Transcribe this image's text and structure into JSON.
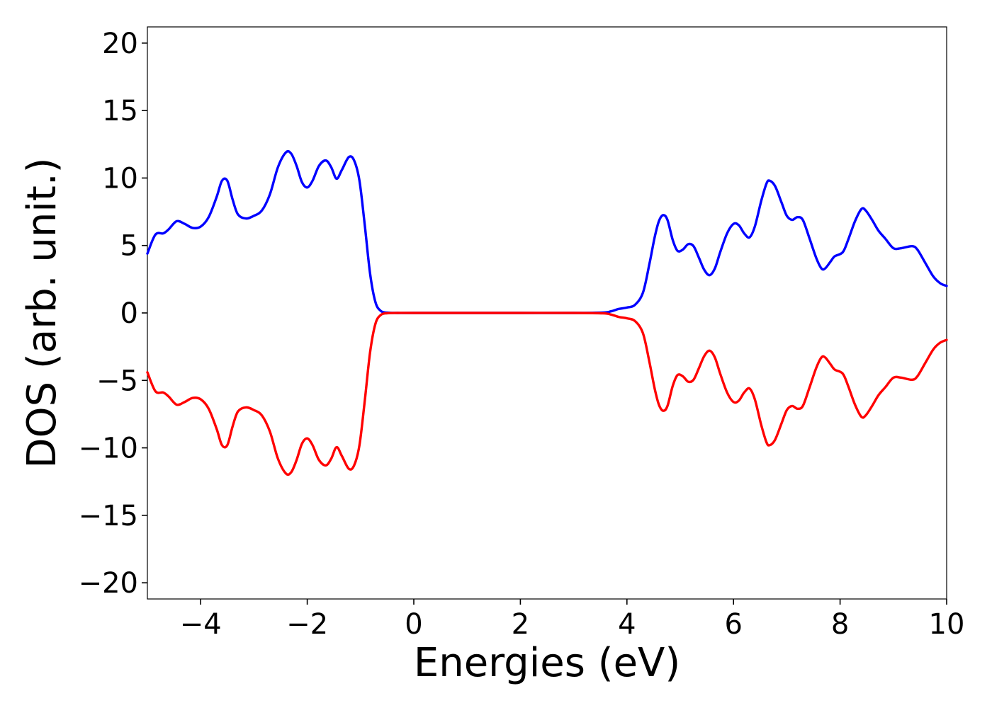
{
  "chart_data": {
    "type": "line",
    "xlabel": "Energies (eV)",
    "ylabel": "DOS (arb. unit.)",
    "xlim": [
      -5,
      10
    ],
    "ylim": [
      -21.2,
      21.2
    ],
    "xticks": [
      -4,
      -2,
      0,
      2,
      4,
      6,
      8,
      10
    ],
    "yticks": [
      20,
      15,
      10,
      5,
      0,
      -5,
      -10,
      -15,
      -20
    ],
    "xtick_labels": [
      "−4",
      "−2",
      "0",
      "2",
      "4",
      "6",
      "8",
      "10"
    ],
    "ytick_labels": [
      "20",
      "15",
      "10",
      "5",
      "0",
      "−5",
      "−10",
      "−15",
      "−20"
    ],
    "grid": false,
    "legend": "none",
    "series": [
      {
        "color": "#0000ff",
        "points": [
          [
            -5.0,
            4.4
          ],
          [
            -4.85,
            5.8
          ],
          [
            -4.7,
            5.9
          ],
          [
            -4.6,
            6.2
          ],
          [
            -4.45,
            6.8
          ],
          [
            -4.3,
            6.6
          ],
          [
            -4.15,
            6.3
          ],
          [
            -4.0,
            6.4
          ],
          [
            -3.85,
            7.1
          ],
          [
            -3.7,
            8.6
          ],
          [
            -3.6,
            9.8
          ],
          [
            -3.5,
            9.8
          ],
          [
            -3.4,
            8.4
          ],
          [
            -3.3,
            7.3
          ],
          [
            -3.15,
            7.0
          ],
          [
            -3.0,
            7.2
          ],
          [
            -2.85,
            7.6
          ],
          [
            -2.7,
            8.8
          ],
          [
            -2.55,
            10.8
          ],
          [
            -2.4,
            11.9
          ],
          [
            -2.3,
            11.8
          ],
          [
            -2.2,
            10.9
          ],
          [
            -2.1,
            9.7
          ],
          [
            -2.0,
            9.3
          ],
          [
            -1.9,
            9.8
          ],
          [
            -1.78,
            10.9
          ],
          [
            -1.65,
            11.3
          ],
          [
            -1.55,
            10.8
          ],
          [
            -1.45,
            9.95
          ],
          [
            -1.35,
            10.6
          ],
          [
            -1.22,
            11.55
          ],
          [
            -1.12,
            11.3
          ],
          [
            -1.02,
            9.8
          ],
          [
            -0.92,
            6.5
          ],
          [
            -0.82,
            2.9
          ],
          [
            -0.72,
            0.8
          ],
          [
            -0.62,
            0.15
          ],
          [
            -0.5,
            0.02
          ],
          [
            -0.3,
            0.0
          ],
          [
            0.0,
            0.0
          ],
          [
            1.0,
            0.0
          ],
          [
            2.0,
            0.0
          ],
          [
            3.0,
            0.0
          ],
          [
            3.55,
            0.03
          ],
          [
            3.7,
            0.12
          ],
          [
            3.85,
            0.3
          ],
          [
            4.0,
            0.4
          ],
          [
            4.15,
            0.6
          ],
          [
            4.3,
            1.5
          ],
          [
            4.42,
            3.6
          ],
          [
            4.52,
            5.6
          ],
          [
            4.6,
            6.8
          ],
          [
            4.68,
            7.25
          ],
          [
            4.76,
            6.9
          ],
          [
            4.86,
            5.4
          ],
          [
            4.95,
            4.6
          ],
          [
            5.05,
            4.7
          ],
          [
            5.15,
            5.1
          ],
          [
            5.25,
            4.95
          ],
          [
            5.35,
            4.1
          ],
          [
            5.45,
            3.2
          ],
          [
            5.55,
            2.8
          ],
          [
            5.65,
            3.3
          ],
          [
            5.75,
            4.5
          ],
          [
            5.88,
            5.9
          ],
          [
            6.0,
            6.6
          ],
          [
            6.1,
            6.5
          ],
          [
            6.2,
            5.9
          ],
          [
            6.3,
            5.6
          ],
          [
            6.4,
            6.4
          ],
          [
            6.52,
            8.3
          ],
          [
            6.62,
            9.6
          ],
          [
            6.68,
            9.8
          ],
          [
            6.78,
            9.4
          ],
          [
            6.9,
            8.2
          ],
          [
            7.0,
            7.2
          ],
          [
            7.1,
            6.9
          ],
          [
            7.2,
            7.1
          ],
          [
            7.3,
            6.9
          ],
          [
            7.42,
            5.6
          ],
          [
            7.55,
            4.1
          ],
          [
            7.65,
            3.3
          ],
          [
            7.72,
            3.3
          ],
          [
            7.82,
            3.8
          ],
          [
            7.9,
            4.2
          ],
          [
            8.05,
            4.5
          ],
          [
            8.15,
            5.4
          ],
          [
            8.28,
            6.8
          ],
          [
            8.4,
            7.7
          ],
          [
            8.48,
            7.6
          ],
          [
            8.6,
            6.9
          ],
          [
            8.72,
            6.1
          ],
          [
            8.85,
            5.5
          ],
          [
            9.0,
            4.8
          ],
          [
            9.15,
            4.8
          ],
          [
            9.35,
            4.95
          ],
          [
            9.45,
            4.7
          ],
          [
            9.6,
            3.7
          ],
          [
            9.75,
            2.7
          ],
          [
            9.88,
            2.2
          ],
          [
            10.0,
            2.0
          ]
        ]
      },
      {
        "color": "#ff0000",
        "points": [
          [
            -5.0,
            -4.4
          ],
          [
            -4.85,
            -5.8
          ],
          [
            -4.7,
            -5.9
          ],
          [
            -4.6,
            -6.2
          ],
          [
            -4.45,
            -6.8
          ],
          [
            -4.3,
            -6.6
          ],
          [
            -4.15,
            -6.3
          ],
          [
            -4.0,
            -6.4
          ],
          [
            -3.85,
            -7.1
          ],
          [
            -3.7,
            -8.6
          ],
          [
            -3.6,
            -9.8
          ],
          [
            -3.5,
            -9.8
          ],
          [
            -3.4,
            -8.4
          ],
          [
            -3.3,
            -7.3
          ],
          [
            -3.15,
            -7.0
          ],
          [
            -3.0,
            -7.2
          ],
          [
            -2.85,
            -7.6
          ],
          [
            -2.7,
            -8.8
          ],
          [
            -2.55,
            -10.8
          ],
          [
            -2.4,
            -11.9
          ],
          [
            -2.3,
            -11.8
          ],
          [
            -2.2,
            -10.9
          ],
          [
            -2.1,
            -9.7
          ],
          [
            -2.0,
            -9.3
          ],
          [
            -1.9,
            -9.8
          ],
          [
            -1.78,
            -10.9
          ],
          [
            -1.65,
            -11.3
          ],
          [
            -1.55,
            -10.8
          ],
          [
            -1.45,
            -9.95
          ],
          [
            -1.35,
            -10.6
          ],
          [
            -1.22,
            -11.55
          ],
          [
            -1.12,
            -11.3
          ],
          [
            -1.02,
            -9.8
          ],
          [
            -0.92,
            -6.5
          ],
          [
            -0.82,
            -2.9
          ],
          [
            -0.72,
            -0.8
          ],
          [
            -0.62,
            -0.15
          ],
          [
            -0.5,
            -0.02
          ],
          [
            -0.3,
            0.0
          ],
          [
            0.0,
            0.0
          ],
          [
            1.0,
            0.0
          ],
          [
            2.0,
            0.0
          ],
          [
            3.0,
            0.0
          ],
          [
            3.55,
            -0.03
          ],
          [
            3.7,
            -0.12
          ],
          [
            3.85,
            -0.3
          ],
          [
            4.0,
            -0.4
          ],
          [
            4.15,
            -0.6
          ],
          [
            4.3,
            -1.5
          ],
          [
            4.42,
            -3.6
          ],
          [
            4.52,
            -5.6
          ],
          [
            4.6,
            -6.8
          ],
          [
            4.68,
            -7.25
          ],
          [
            4.76,
            -6.9
          ],
          [
            4.86,
            -5.4
          ],
          [
            4.95,
            -4.6
          ],
          [
            5.05,
            -4.7
          ],
          [
            5.15,
            -5.1
          ],
          [
            5.25,
            -4.95
          ],
          [
            5.35,
            -4.1
          ],
          [
            5.45,
            -3.2
          ],
          [
            5.55,
            -2.8
          ],
          [
            5.65,
            -3.3
          ],
          [
            5.75,
            -4.5
          ],
          [
            5.88,
            -5.9
          ],
          [
            6.0,
            -6.6
          ],
          [
            6.1,
            -6.5
          ],
          [
            6.2,
            -5.9
          ],
          [
            6.3,
            -5.6
          ],
          [
            6.4,
            -6.4
          ],
          [
            6.52,
            -8.3
          ],
          [
            6.62,
            -9.6
          ],
          [
            6.68,
            -9.8
          ],
          [
            6.78,
            -9.4
          ],
          [
            6.9,
            -8.2
          ],
          [
            7.0,
            -7.2
          ],
          [
            7.1,
            -6.9
          ],
          [
            7.2,
            -7.1
          ],
          [
            7.3,
            -6.9
          ],
          [
            7.42,
            -5.6
          ],
          [
            7.55,
            -4.1
          ],
          [
            7.65,
            -3.3
          ],
          [
            7.72,
            -3.3
          ],
          [
            7.82,
            -3.8
          ],
          [
            7.9,
            -4.2
          ],
          [
            8.05,
            -4.5
          ],
          [
            8.15,
            -5.4
          ],
          [
            8.28,
            -6.8
          ],
          [
            8.4,
            -7.7
          ],
          [
            8.48,
            -7.6
          ],
          [
            8.6,
            -6.9
          ],
          [
            8.72,
            -6.1
          ],
          [
            8.85,
            -5.5
          ],
          [
            9.0,
            -4.8
          ],
          [
            9.15,
            -4.8
          ],
          [
            9.35,
            -4.95
          ],
          [
            9.45,
            -4.7
          ],
          [
            9.6,
            -3.7
          ],
          [
            9.75,
            -2.7
          ],
          [
            9.88,
            -2.2
          ],
          [
            10.0,
            -2.0
          ]
        ]
      }
    ]
  }
}
